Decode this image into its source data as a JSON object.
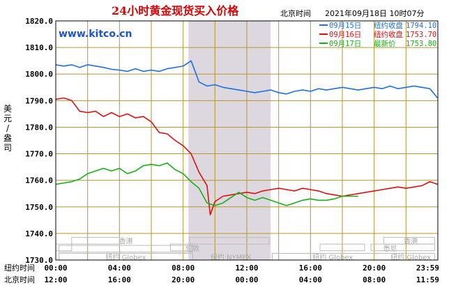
{
  "header": {
    "title": "24小时黄金现货买入价格",
    "timezone_label": "北京时间",
    "timestamp": "2021年09月18日 10时07分",
    "site": "www.kitco.cn"
  },
  "colors": {
    "series_sep15": "#1e6fe0",
    "series_sep16": "#e01010",
    "series_sep17": "#18b018",
    "grid": "#b8962e",
    "frame": "#000000",
    "nymex_band": "#ddd8e0",
    "title": "#dd0000"
  },
  "chart_data": {
    "type": "line",
    "title": "24小时黄金现货买入价格",
    "ylabel": "美元/盎司",
    "ylim": [
      1730,
      1820
    ],
    "yticks": [
      "1730.0",
      "1740.0",
      "1750.0",
      "1760.0",
      "1770.0",
      "1780.0",
      "1790.0",
      "1800.0",
      "1810.0",
      "1820.0"
    ],
    "xlim": [
      0,
      24
    ],
    "grid": true,
    "legend_position": "top-right",
    "x_axis_rows": [
      {
        "label": "纽约时间",
        "ticks": [
          "00:00",
          "04:00",
          "08:00",
          "12:00",
          "16:00",
          "20:00",
          "23:59"
        ]
      },
      {
        "label": "北京时间",
        "ticks": [
          "12:00",
          "16:00",
          "20:00",
          "00:00",
          "04:00",
          "08:00",
          "11:59"
        ]
      }
    ],
    "market_labels": [
      {
        "text": "香港",
        "hour": 4.4
      },
      {
        "text": "伦敦",
        "hour": 8.6
      },
      {
        "text": "纽约 Globex",
        "hour": 4.4
      },
      {
        "text": "纽约 NYMEX",
        "hour": 11.0
      },
      {
        "text": "纽约 Globex",
        "hour": 17.4
      },
      {
        "text": "悉尼",
        "hour": 21.0
      },
      {
        "text": "香港",
        "hour": 22.3
      },
      {
        "text": "纽约 Globex",
        "hour": 22.3
      }
    ],
    "series": [
      {
        "name": "09月15日",
        "legend_label": "纽约收盘",
        "legend_value": "1794.10",
        "color": "#1e6fe0",
        "x": [
          0,
          0.5,
          1,
          1.5,
          2,
          2.5,
          3,
          3.5,
          4,
          4.5,
          5,
          5.5,
          6,
          6.5,
          7,
          7.5,
          8,
          8.5,
          9,
          9.5,
          10,
          10.5,
          11,
          11.5,
          12,
          12.5,
          13,
          13.5,
          14,
          14.5,
          15,
          15.5,
          16,
          16.5,
          17,
          17.5,
          18,
          18.5,
          19,
          19.5,
          20,
          20.5,
          21,
          21.5,
          22,
          22.5,
          23,
          23.5,
          23.98
        ],
        "y": [
          1803.5,
          1803,
          1803.5,
          1802.5,
          1803.5,
          1803,
          1802.5,
          1801.8,
          1801.5,
          1801,
          1802,
          1801,
          1801.5,
          1801,
          1802,
          1802.5,
          1803,
          1805,
          1797,
          1795.5,
          1796,
          1795,
          1794.5,
          1794,
          1793.5,
          1793,
          1793.5,
          1794,
          1793,
          1792.5,
          1793.5,
          1794,
          1793.5,
          1794.5,
          1794,
          1794.5,
          1795,
          1794.5,
          1794,
          1794.5,
          1795,
          1794.5,
          1795.5,
          1794.5,
          1795,
          1795.5,
          1795,
          1794.5,
          1791
        ]
      },
      {
        "name": "09月16日",
        "legend_label": "纽约收盘",
        "legend_value": "1753.70",
        "color": "#e01010",
        "x": [
          0,
          0.5,
          1,
          1.5,
          2,
          2.5,
          3,
          3.5,
          4,
          4.5,
          5,
          5.5,
          6,
          6.5,
          7,
          7.5,
          8,
          8.5,
          9,
          9.5,
          9.7,
          10,
          10.5,
          11,
          11.5,
          12,
          12.5,
          13,
          13.5,
          14,
          14.5,
          15,
          15.5,
          16,
          16.5,
          17,
          17.5,
          18,
          18.5,
          19,
          19.5,
          20,
          20.5,
          21,
          21.5,
          22,
          22.5,
          23,
          23.5,
          23.98
        ],
        "y": [
          1790.5,
          1791,
          1790,
          1786,
          1785.5,
          1786,
          1784,
          1785.5,
          1784,
          1785,
          1783.5,
          1784,
          1782,
          1778,
          1777.5,
          1775,
          1773,
          1770,
          1763,
          1758,
          1747,
          1752,
          1754,
          1754.5,
          1755,
          1755.5,
          1755,
          1756,
          1756.5,
          1757,
          1756.5,
          1756,
          1757,
          1756.5,
          1756,
          1755,
          1754.5,
          1754,
          1754.5,
          1755,
          1755.5,
          1756,
          1756.5,
          1757,
          1757.5,
          1757,
          1757.5,
          1758,
          1759.5,
          1758.5
        ]
      },
      {
        "name": "09月17日",
        "legend_label": "最新价",
        "legend_value": "1753.80",
        "color": "#18b018",
        "x": [
          0,
          0.5,
          1,
          1.5,
          2,
          2.5,
          3,
          3.5,
          4,
          4.5,
          5,
          5.5,
          6,
          6.5,
          7,
          7.5,
          8,
          8.5,
          9,
          9.5,
          10,
          10.5,
          11,
          11.5,
          12,
          12.5,
          13,
          13.5,
          14,
          14.5,
          15,
          15.5,
          16,
          16.5,
          17,
          17.5,
          18,
          18.5,
          19
        ],
        "y": [
          1758.5,
          1759,
          1759.5,
          1760.5,
          1762.5,
          1763.5,
          1764.5,
          1763.5,
          1764.5,
          1762.5,
          1763.5,
          1765.5,
          1766,
          1765.5,
          1766.5,
          1764,
          1762.5,
          1759.5,
          1757,
          1751.5,
          1750.5,
          1751.5,
          1753.5,
          1755.5,
          1753.5,
          1752.5,
          1753.5,
          1752.5,
          1751.5,
          1750.5,
          1751.5,
          1752.5,
          1753,
          1752.5,
          1752.5,
          1753,
          1754,
          1754,
          1754
        ]
      }
    ]
  }
}
